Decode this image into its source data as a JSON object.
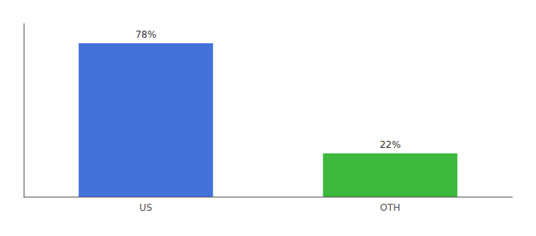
{
  "chart_data": {
    "type": "bar",
    "categories": [
      "US",
      "OTH"
    ],
    "values": [
      78,
      22
    ],
    "colors": [
      "#4472db",
      "#3cb93c"
    ],
    "data_labels": true,
    "value_labels": [
      "78%",
      "22%"
    ],
    "ylim": [
      0,
      88
    ],
    "grid": false,
    "tick_labels": "x"
  }
}
